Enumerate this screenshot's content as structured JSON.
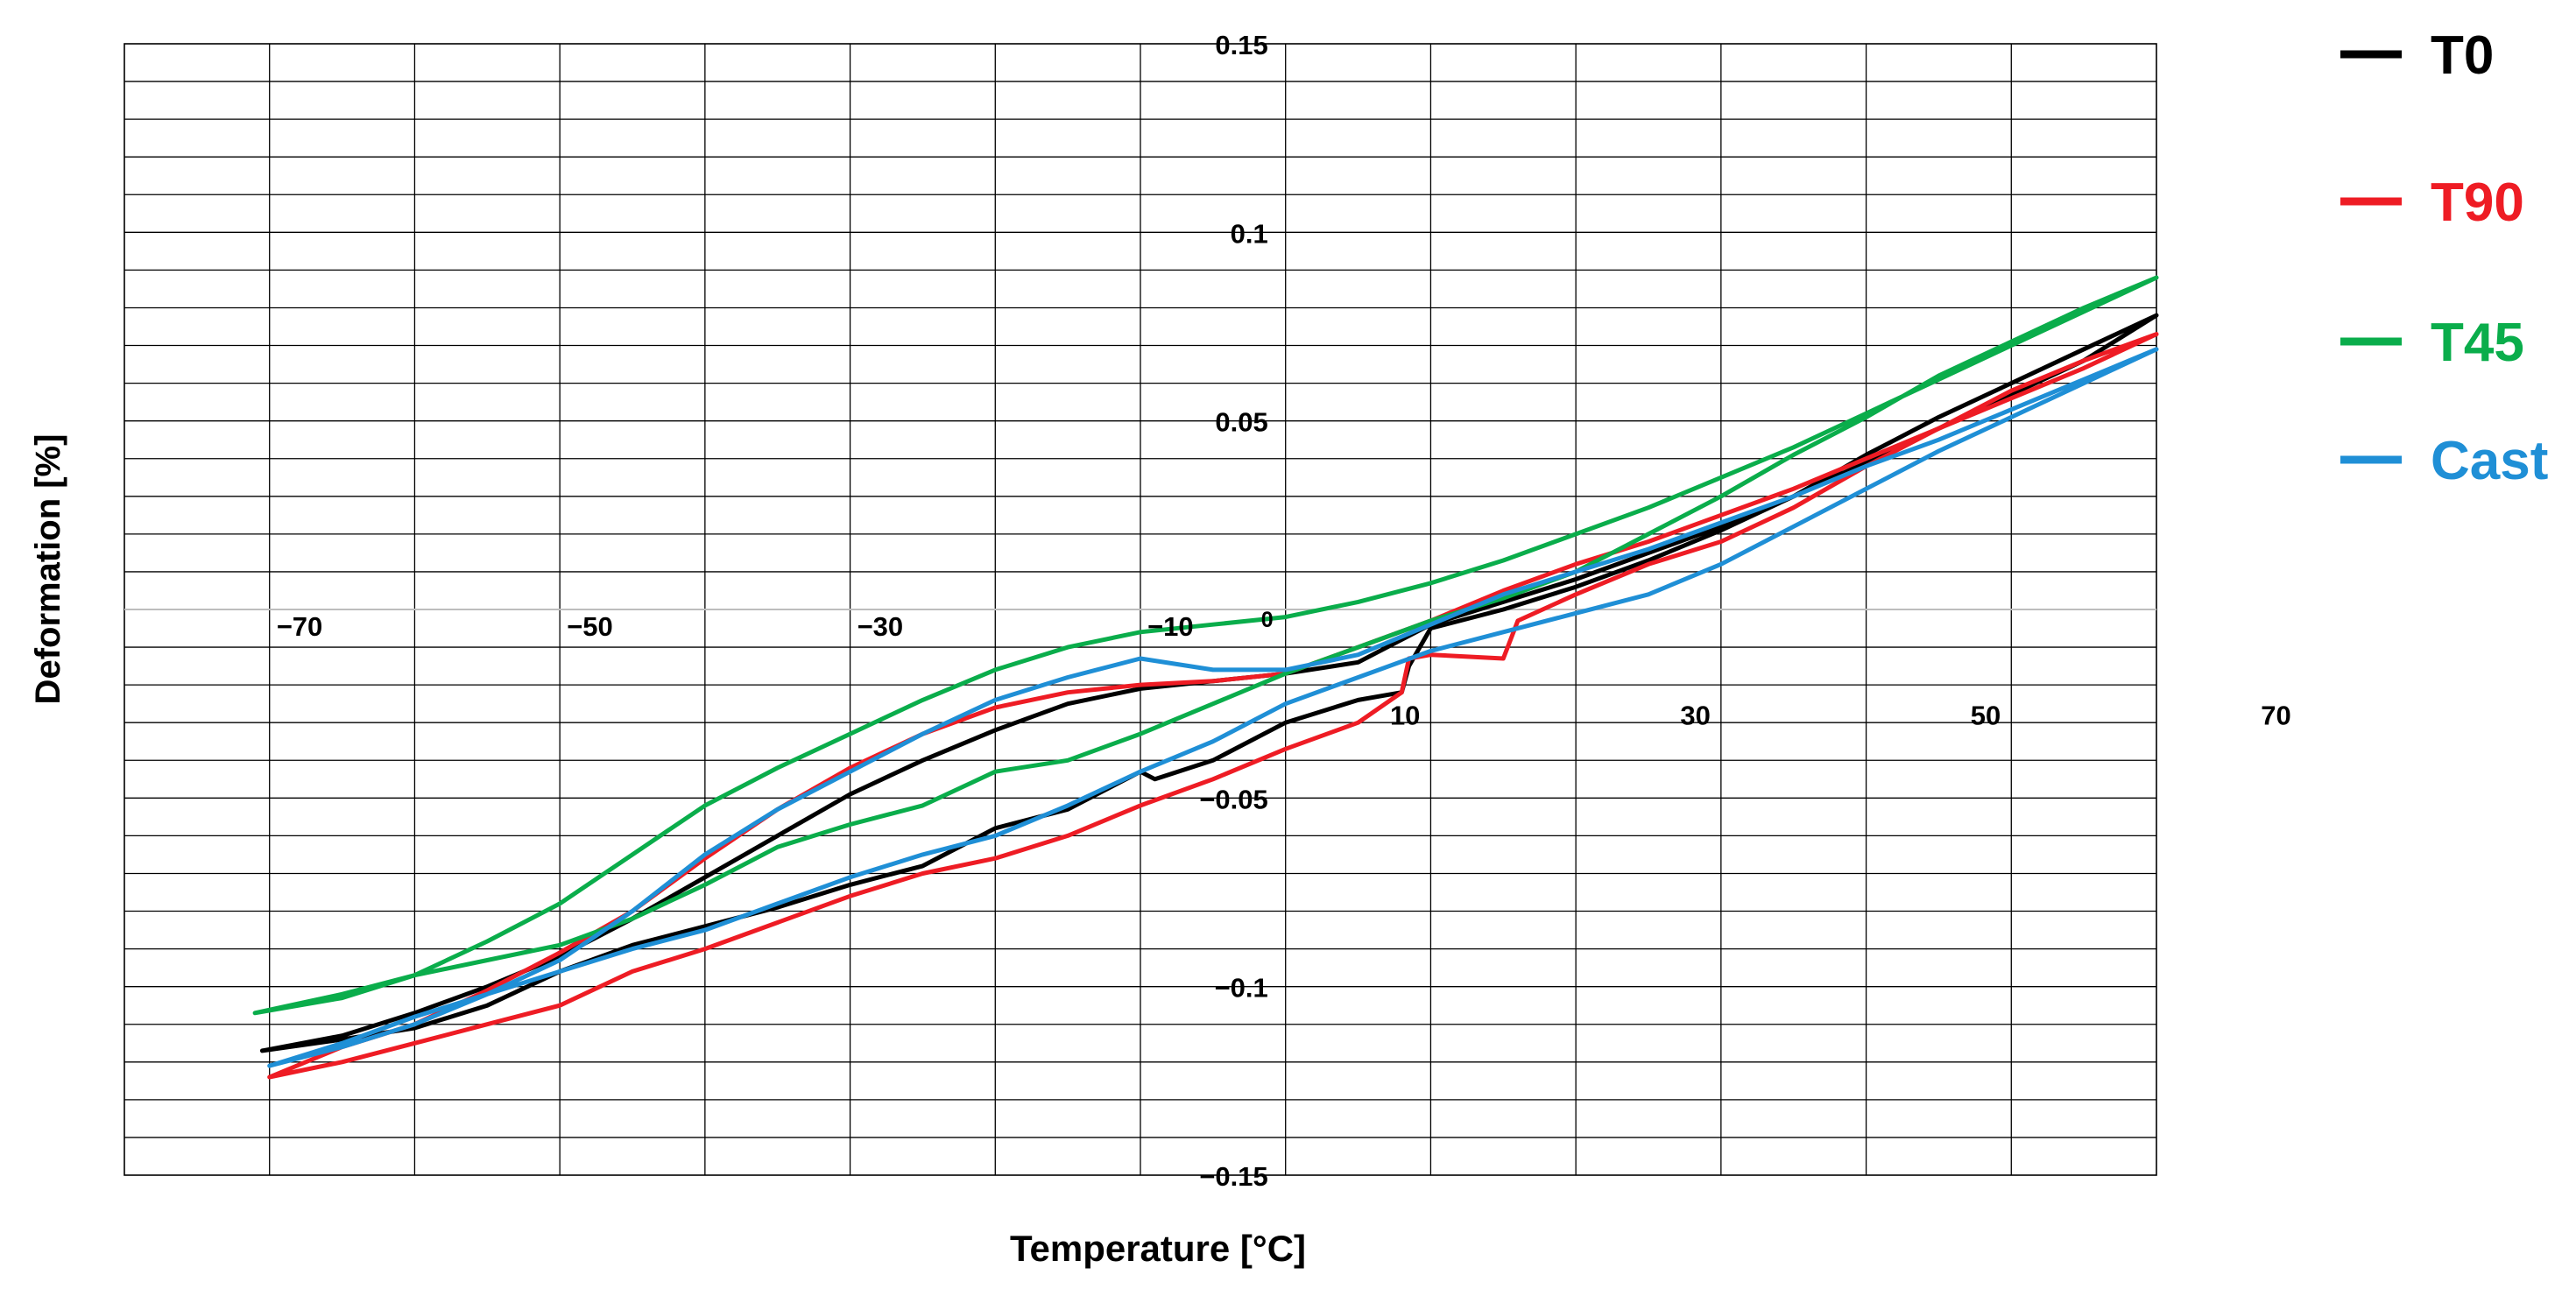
{
  "chart_data": {
    "type": "line",
    "xlabel": "Temperature [°C]",
    "ylabel": "Deformation [%]",
    "xlim": [
      -80,
      60
    ],
    "ylim": [
      -0.15,
      0.15
    ],
    "x_ticks": [
      -70,
      -50,
      -30,
      -10,
      10,
      30,
      50,
      70
    ],
    "y_ticks": [
      {
        "value": 0.15,
        "label": "0.15"
      },
      {
        "value": 0.1,
        "label": "0.1"
      },
      {
        "value": 0.05,
        "label": "0.05"
      },
      {
        "value": 0,
        "label": "0"
      },
      {
        "value": -0.05,
        "label": "−0.05"
      },
      {
        "value": -0.1,
        "label": "−0.1"
      },
      {
        "value": -0.15,
        "label": "−0.15"
      }
    ],
    "grid": true,
    "legend_position": "right",
    "series": [
      {
        "name": "T0",
        "color": "#000000",
        "x": [
          -70.5,
          -65,
          -60,
          -55,
          -50,
          -45,
          -40,
          -35,
          -30,
          -25,
          -20,
          -15,
          -10,
          -5,
          0,
          5,
          10,
          15,
          20,
          25,
          30,
          35,
          40,
          45,
          50,
          55,
          60,
          55,
          50,
          45,
          40,
          35,
          30,
          25,
          20,
          15,
          10,
          8.5,
          8,
          5,
          0,
          -5,
          -9,
          -10,
          -15,
          -20,
          -25,
          -30,
          -35,
          -40,
          -45,
          -50,
          -55,
          -60,
          -65,
          -70.5
        ],
        "y": [
          -0.117,
          -0.113,
          -0.107,
          -0.1,
          -0.092,
          -0.082,
          -0.071,
          -0.06,
          -0.049,
          -0.04,
          -0.032,
          -0.025,
          -0.021,
          -0.019,
          -0.017,
          -0.014,
          -0.004,
          0.002,
          0.008,
          0.015,
          0.022,
          0.03,
          0.039,
          0.048,
          0.057,
          0.066,
          0.078,
          0.069,
          0.06,
          0.051,
          0.041,
          0.03,
          0.021,
          0.013,
          0.006,
          0.0,
          -0.005,
          -0.015,
          -0.022,
          -0.024,
          -0.03,
          -0.04,
          -0.045,
          -0.043,
          -0.053,
          -0.058,
          -0.068,
          -0.073,
          -0.079,
          -0.084,
          -0.089,
          -0.096,
          -0.105,
          -0.111,
          -0.114,
          -0.117
        ]
      },
      {
        "name": "T90",
        "color": "#ee1c24",
        "x": [
          -70,
          -65,
          -60,
          -55,
          -50,
          -45,
          -40,
          -35,
          -30,
          -25,
          -20,
          -15,
          -10,
          -5,
          0,
          5,
          10,
          15,
          20,
          25,
          30,
          35,
          40,
          45,
          50,
          55,
          60,
          55,
          50,
          45,
          40,
          35,
          30,
          25,
          20,
          16,
          15.5,
          15,
          10,
          8.5,
          8,
          5,
          0,
          -5,
          -10,
          -15,
          -20,
          -25,
          -30,
          -35,
          -40,
          -45,
          -50,
          -55,
          -60,
          -65,
          -70
        ],
        "y": [
          -0.124,
          -0.116,
          -0.11,
          -0.101,
          -0.091,
          -0.08,
          -0.066,
          -0.053,
          -0.042,
          -0.033,
          -0.026,
          -0.022,
          -0.02,
          -0.019,
          -0.017,
          -0.01,
          -0.003,
          0.005,
          0.012,
          0.018,
          0.025,
          0.032,
          0.04,
          0.048,
          0.056,
          0.064,
          0.073,
          0.066,
          0.058,
          0.048,
          0.038,
          0.027,
          0.018,
          0.012,
          0.004,
          -0.003,
          -0.008,
          -0.013,
          -0.012,
          -0.013,
          -0.022,
          -0.03,
          -0.037,
          -0.045,
          -0.052,
          -0.06,
          -0.066,
          -0.07,
          -0.076,
          -0.083,
          -0.09,
          -0.096,
          -0.105,
          -0.11,
          -0.115,
          -0.12,
          -0.124
        ]
      },
      {
        "name": "T45",
        "color": "#0aad4b",
        "x": [
          -71,
          -65,
          -60,
          -55,
          -50,
          -45,
          -40,
          -35,
          -30,
          -25,
          -20,
          -15,
          -10,
          -5,
          0,
          5,
          10,
          15,
          20,
          25,
          30,
          35,
          40,
          45,
          50,
          55,
          60,
          55,
          50,
          45,
          40,
          35,
          30,
          25,
          20,
          15,
          10,
          5,
          0,
          -5,
          -10,
          -15,
          -20,
          -25,
          -30,
          -35,
          -40,
          -45,
          -50,
          -55,
          -60,
          -65,
          -71
        ],
        "y": [
          -0.107,
          -0.103,
          -0.097,
          -0.088,
          -0.078,
          -0.065,
          -0.052,
          -0.042,
          -0.033,
          -0.024,
          -0.016,
          -0.01,
          -0.006,
          -0.004,
          -0.002,
          0.002,
          0.007,
          0.013,
          0.02,
          0.027,
          0.035,
          0.043,
          0.052,
          0.061,
          0.07,
          0.079,
          0.088,
          0.08,
          0.071,
          0.062,
          0.051,
          0.041,
          0.03,
          0.02,
          0.01,
          0.003,
          -0.003,
          -0.01,
          -0.017,
          -0.025,
          -0.033,
          -0.04,
          -0.043,
          -0.052,
          -0.057,
          -0.063,
          -0.073,
          -0.082,
          -0.089,
          -0.093,
          -0.097,
          -0.102,
          -0.107
        ]
      },
      {
        "name": "Cast",
        "color": "#1f8fd6",
        "x": [
          -70,
          -65,
          -60,
          -55,
          -50,
          -45,
          -40,
          -35,
          -30,
          -25,
          -20,
          -15,
          -10,
          -5,
          0,
          5,
          10,
          15,
          20,
          25,
          30,
          35,
          40,
          45,
          50,
          55,
          60,
          55,
          50,
          45,
          40,
          35,
          30,
          25,
          20,
          15,
          10,
          5,
          0,
          -5,
          -10,
          -15,
          -20,
          -25,
          -30,
          -35,
          -40,
          -45,
          -50,
          -55,
          -60,
          -65,
          -70
        ],
        "y": [
          -0.121,
          -0.115,
          -0.108,
          -0.102,
          -0.093,
          -0.08,
          -0.065,
          -0.053,
          -0.043,
          -0.033,
          -0.024,
          -0.018,
          -0.013,
          -0.016,
          -0.016,
          -0.012,
          -0.004,
          0.004,
          0.01,
          0.016,
          0.023,
          0.03,
          0.038,
          0.045,
          0.053,
          0.061,
          0.069,
          0.06,
          0.051,
          0.042,
          0.032,
          0.022,
          0.012,
          0.004,
          -0.001,
          -0.006,
          -0.011,
          -0.018,
          -0.025,
          -0.035,
          -0.043,
          -0.052,
          -0.06,
          -0.065,
          -0.071,
          -0.078,
          -0.085,
          -0.09,
          -0.096,
          -0.102,
          -0.11,
          -0.116,
          -0.121
        ]
      }
    ]
  }
}
